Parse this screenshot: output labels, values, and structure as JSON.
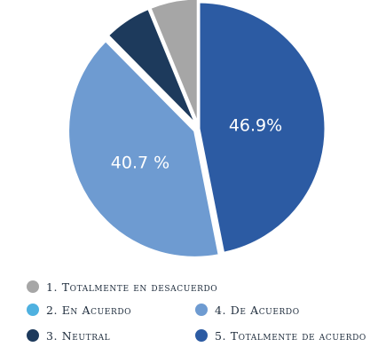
{
  "chart_data": {
    "type": "pie",
    "title": "",
    "slices": [
      {
        "label": "5. Totalmente de acuerdo",
        "value": 46.9,
        "display": "46.9%",
        "color": "#2c5ba3"
      },
      {
        "label": "4. De Acuerdo",
        "value": 40.7,
        "display": "40.7 %",
        "color": "#6e9bd1"
      },
      {
        "label": "3. Neutral",
        "value": 6.2,
        "display": "",
        "color": "#1d3a5c"
      },
      {
        "label": "1. Totalmente en desacuerdo",
        "value": 6.2,
        "display": "",
        "color": "#a6a6a6"
      }
    ],
    "legend": {
      "placement": "bottom",
      "items": [
        {
          "label": "1. Totalmente en desacuerdo",
          "color": "#a6a6a6"
        },
        {
          "label": "2. En Acuerdo",
          "color": "#4fb1e0"
        },
        {
          "label": "4. De Acuerdo",
          "color": "#6e9bd1"
        },
        {
          "label": "3. Neutral",
          "color": "#1d3a5c"
        },
        {
          "label": "5. Totalmente de acuerdo",
          "color": "#2c5ba3"
        }
      ]
    }
  }
}
